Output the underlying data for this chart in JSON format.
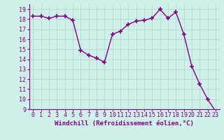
{
  "x": [
    0,
    1,
    2,
    3,
    4,
    5,
    6,
    7,
    8,
    9,
    10,
    11,
    12,
    13,
    14,
    15,
    16,
    17,
    18,
    19,
    20,
    21,
    22,
    23
  ],
  "y": [
    18.3,
    18.3,
    18.1,
    18.3,
    18.3,
    17.9,
    14.9,
    14.4,
    14.1,
    13.7,
    16.5,
    16.8,
    17.5,
    17.8,
    17.9,
    18.1,
    19.0,
    18.1,
    18.7,
    16.5,
    13.3,
    11.5,
    10.0,
    8.8
  ],
  "line_color": "#800080",
  "marker": "+",
  "marker_size": 4,
  "marker_linewidth": 1.2,
  "bg_color": "#cff0eb",
  "grid_color": "#a8d8d0",
  "xlabel": "Windchill (Refroidissement éolien,°C)",
  "xlim": [
    -0.5,
    23.5
  ],
  "ylim": [
    9,
    19.5
  ],
  "yticks": [
    9,
    10,
    11,
    12,
    13,
    14,
    15,
    16,
    17,
    18,
    19
  ],
  "xticks": [
    0,
    1,
    2,
    3,
    4,
    5,
    6,
    7,
    8,
    9,
    10,
    11,
    12,
    13,
    14,
    15,
    16,
    17,
    18,
    19,
    20,
    21,
    22,
    23
  ],
  "xlabel_fontsize": 6.5,
  "tick_fontsize": 6,
  "line_width": 1.0
}
